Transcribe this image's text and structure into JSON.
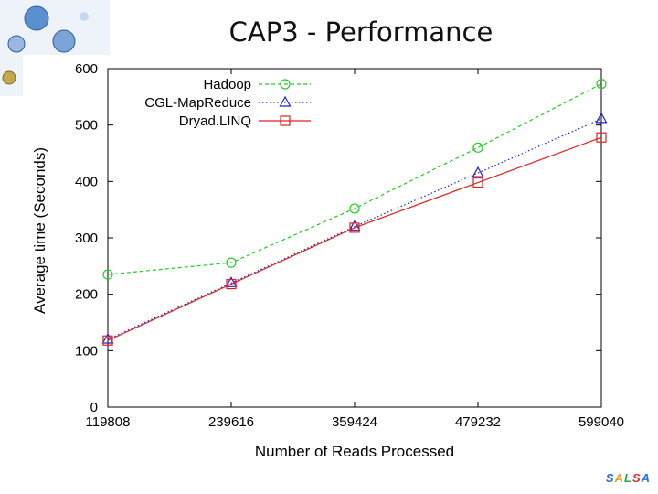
{
  "slide": {
    "title": "CAP3 - Performance",
    "brand_letters": [
      {
        "char": "S",
        "color": "#2b6fd6"
      },
      {
        "char": "A",
        "color": "#e0a020"
      },
      {
        "char": "L",
        "color": "#2aa84a"
      },
      {
        "char": "S",
        "color": "#d63030"
      },
      {
        "char": "A",
        "color": "#2b6fd6"
      }
    ]
  },
  "chart_data": {
    "type": "line",
    "title": "",
    "xlabel": "Number of Reads Processed",
    "ylabel": "Average time (Seconds)",
    "categories": [
      "119808",
      "239616",
      "359424",
      "479232",
      "599040"
    ],
    "x": [
      119808,
      239616,
      359424,
      479232,
      599040
    ],
    "ylim": [
      0,
      600
    ],
    "yticks": [
      0,
      100,
      200,
      300,
      400,
      500,
      600
    ],
    "grid": false,
    "legend_position": "top-left",
    "series": [
      {
        "name": "Hadoop",
        "values": [
          235,
          256,
          352,
          460,
          573
        ],
        "color": "#22cc22",
        "marker": "circle",
        "dash": "dashed"
      },
      {
        "name": "CGL-MapReduce",
        "values": [
          120,
          220,
          320,
          415,
          511
        ],
        "color": "#2222cc",
        "marker": "triangle",
        "dash": "dotted"
      },
      {
        "name": "Dryad.LINQ",
        "values": [
          118,
          218,
          318,
          398,
          478
        ],
        "color": "#e02020",
        "marker": "square",
        "dash": "solid"
      }
    ]
  }
}
